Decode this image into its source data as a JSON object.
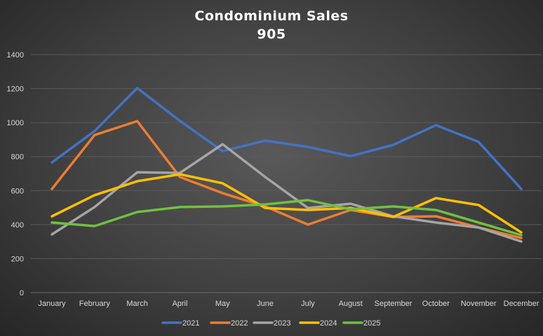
{
  "chart_data": {
    "type": "line",
    "title": "Condominium Sales",
    "subtitle": "905",
    "xlabel": "",
    "ylabel": "",
    "ylim": [
      0,
      1400
    ],
    "yticks": [
      0,
      200,
      400,
      600,
      800,
      1000,
      1200,
      1400
    ],
    "grid": true,
    "legend_position": "bottom",
    "categories": [
      "January",
      "February",
      "March",
      "April",
      "May",
      "June",
      "July",
      "August",
      "September",
      "October",
      "November",
      "December"
    ],
    "series": [
      {
        "name": "2021",
        "color": "#4472C4",
        "values": [
          766,
          950,
          1203,
          1010,
          832,
          894,
          857,
          803,
          869,
          985,
          886,
          610
        ]
      },
      {
        "name": "2022",
        "color": "#ED7D31",
        "values": [
          610,
          927,
          1009,
          680,
          585,
          507,
          400,
          486,
          445,
          449,
          383,
          321
        ]
      },
      {
        "name": "2023",
        "color": "#A5A5A5",
        "values": [
          342,
          503,
          708,
          704,
          873,
          680,
          498,
          523,
          449,
          412,
          383,
          301
        ]
      },
      {
        "name": "2024",
        "color": "#FFC000",
        "values": [
          449,
          573,
          655,
          696,
          643,
          498,
          486,
          498,
          445,
          556,
          515,
          354
        ]
      },
      {
        "name": "2025",
        "color": "#70C040",
        "values": [
          412,
          391,
          474,
          503,
          507,
          519,
          544,
          490,
          507,
          486,
          412,
          338
        ]
      }
    ]
  }
}
